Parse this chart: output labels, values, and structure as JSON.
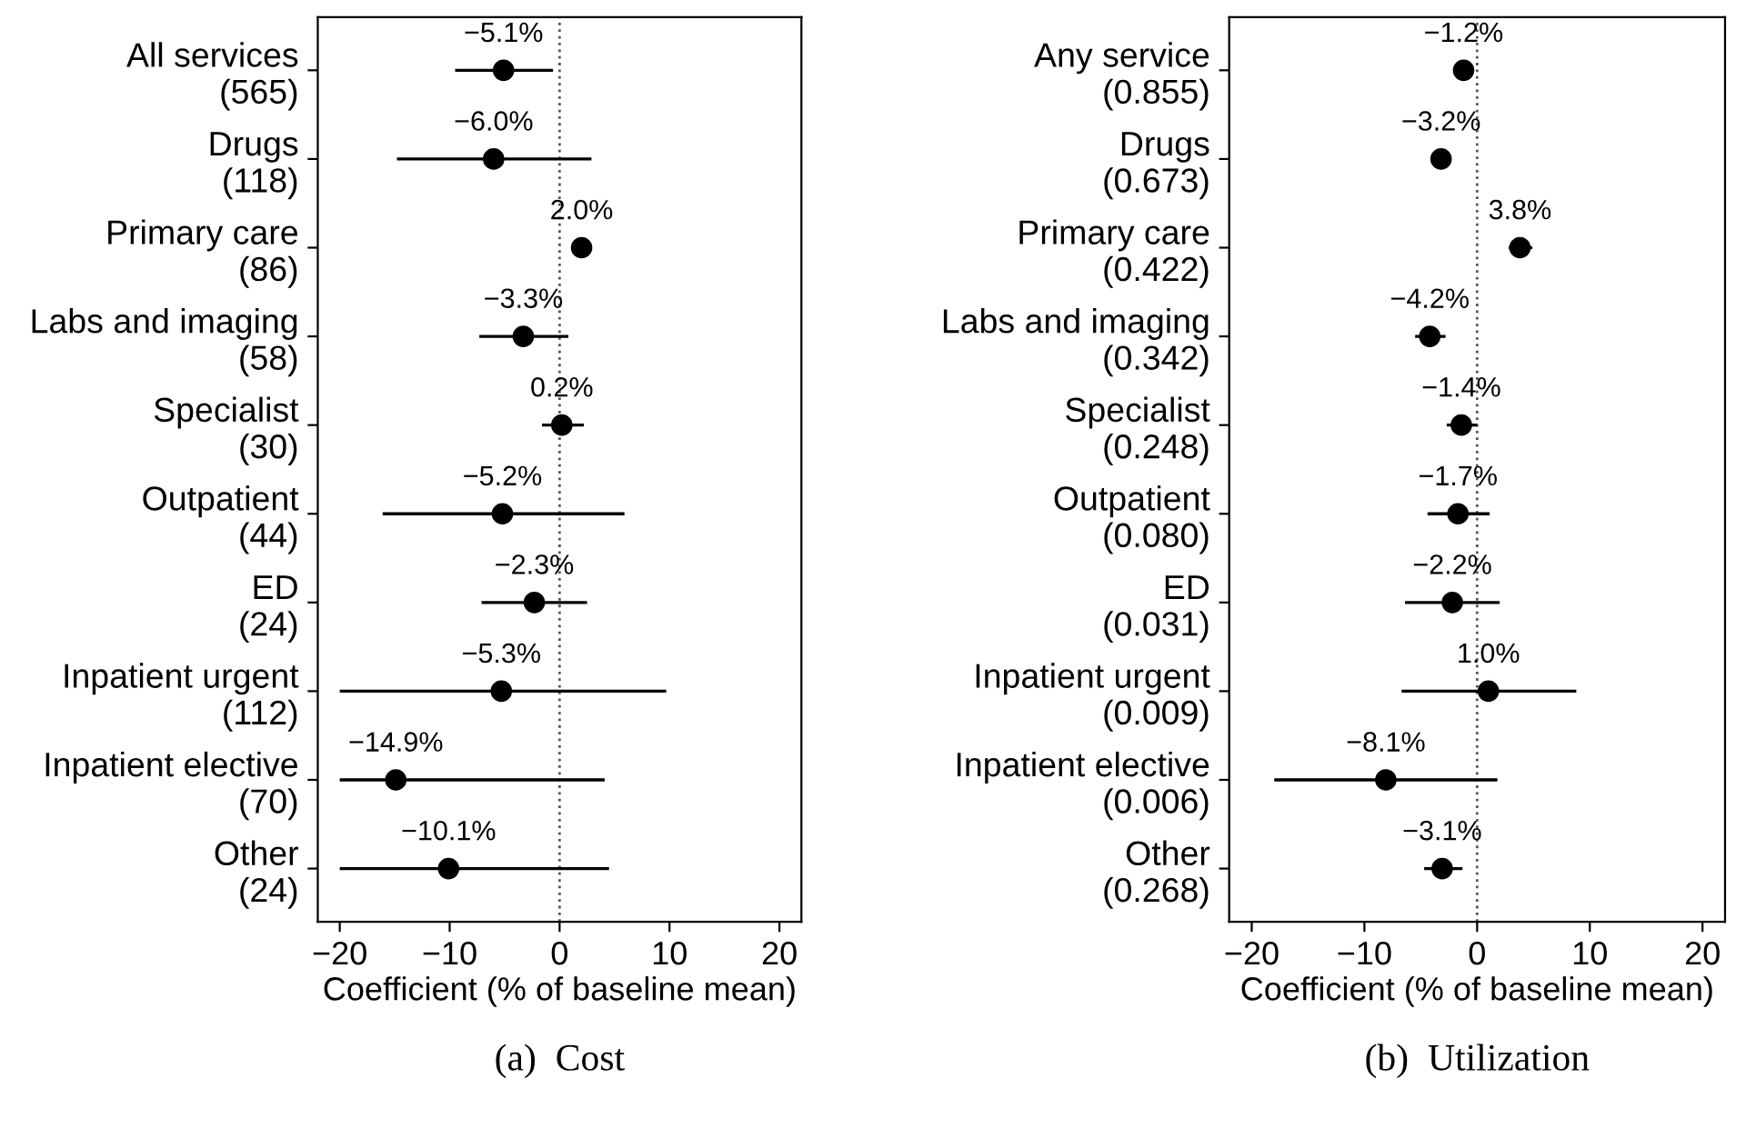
{
  "chart_data": [
    {
      "type": "scatter",
      "orientation": "horizontal",
      "title": "(a)  Cost",
      "xlabel": "Coefficient (% of baseline mean)",
      "categories": [
        "All services\n(565)",
        "Drugs\n(118)",
        "Primary care\n(86)",
        "Labs and imaging\n(58)",
        "Specialist\n(30)",
        "Outpatient\n(44)",
        "ED\n(24)",
        "Inpatient urgent\n(112)",
        "Inpatient elective\n(70)",
        "Other\n(24)"
      ],
      "color": "#000000",
      "values": [
        -5.1,
        -6.0,
        2.0,
        -3.3,
        0.2,
        -5.2,
        -2.3,
        -5.3,
        -14.9,
        -10.1
      ],
      "value_labels": [
        "−5.1%",
        "−6.0%",
        "2.0%",
        "−3.3%",
        "0.2%",
        "−5.2%",
        "−2.3%",
        "−5.3%",
        "−14.9%",
        "−10.1%"
      ],
      "errors": [
        [
          -9.5,
          -0.6
        ],
        [
          -14.8,
          2.9
        ],
        null,
        [
          -7.3,
          0.8
        ],
        [
          -1.6,
          2.2
        ],
        [
          -16.1,
          5.9
        ],
        [
          -7.1,
          2.5
        ],
        [
          -20,
          9.7
        ],
        [
          -20,
          4.1
        ],
        [
          -20,
          4.5
        ]
      ],
      "marker": "circle",
      "grid": false,
      "xlim": [
        -22,
        22
      ],
      "xticks": [
        -20,
        -10,
        0,
        10,
        20
      ],
      "ref_lines": [
        {
          "axis": "x",
          "value": 0,
          "color": "#555555",
          "line_style": "dotted"
        }
      ]
    },
    {
      "type": "scatter",
      "orientation": "horizontal",
      "title": "(b)  Utilization",
      "xlabel": "Coefficient (% of baseline mean)",
      "categories": [
        "Any service\n(0.855)",
        "Drugs\n(0.673)",
        "Primary care\n(0.422)",
        "Labs and imaging\n(0.342)",
        "Specialist\n(0.248)",
        "Outpatient\n(0.080)",
        "ED\n(0.031)",
        "Inpatient urgent\n(0.009)",
        "Inpatient elective\n(0.006)",
        "Other\n(0.268)"
      ],
      "color": "#000000",
      "values": [
        -1.2,
        -3.2,
        3.8,
        -4.2,
        -1.4,
        -1.7,
        -2.2,
        1.0,
        -8.1,
        -3.1
      ],
      "value_labels": [
        "−1.2%",
        "−3.2%",
        "3.8%",
        "−4.2%",
        "−1.4%",
        "−1.7%",
        "−2.2%",
        "1.0%",
        "−8.1%",
        "−3.1%"
      ],
      "errors": [
        null,
        null,
        [
          2.8,
          4.9
        ],
        [
          -5.5,
          -2.8
        ],
        [
          -2.7,
          0
        ],
        [
          -4.4,
          1.1
        ],
        [
          -6.4,
          2.0
        ],
        [
          -6.7,
          8.8
        ],
        [
          -18.0,
          1.8
        ],
        [
          -4.7,
          -1.3
        ]
      ],
      "marker": "circle",
      "grid": false,
      "xlim": [
        -22,
        22
      ],
      "xticks": [
        -20,
        -10,
        0,
        10,
        20
      ],
      "ref_lines": [
        {
          "axis": "x",
          "value": 0,
          "color": "#555555",
          "line_style": "dotted"
        }
      ]
    }
  ]
}
